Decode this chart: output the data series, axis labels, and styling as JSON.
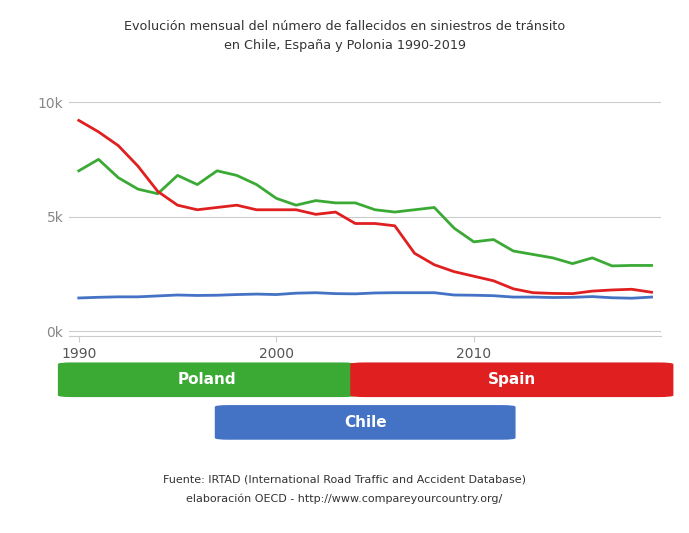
{
  "title_line1": "Evolución mensual del número de fallecidos en siniestros de tránsito",
  "title_line2": "en Chile, España y Polonia 1990-2019",
  "footer_line1": "Fuente: IRTAD (International Road Traffic and Accident Database)",
  "footer_line2": "elaboración OECD - http://www.compareyourcountry.org/",
  "background_color": "#ffffff",
  "plot_bg_color": "#ffffff",
  "grid_color": "#cccccc",
  "ytick_labels": [
    "0k",
    "5k",
    "10k"
  ],
  "ytick_values": [
    0,
    5000,
    10000
  ],
  "ylim": [
    -200,
    10500
  ],
  "xlim": [
    1989.5,
    2019.5
  ],
  "xtick_values": [
    1990,
    2000,
    2010
  ],
  "spain_color": "#e02020",
  "poland_color": "#3aaa35",
  "chile_color": "#4472c4",
  "years": [
    1990,
    1991,
    1992,
    1993,
    1994,
    1995,
    1996,
    1997,
    1998,
    1999,
    2000,
    2001,
    2002,
    2003,
    2004,
    2005,
    2006,
    2007,
    2008,
    2009,
    2010,
    2011,
    2012,
    2013,
    2014,
    2015,
    2016,
    2017,
    2018,
    2019
  ],
  "spain": [
    9200,
    8700,
    8100,
    7200,
    6100,
    5500,
    5300,
    5400,
    5500,
    5300,
    5300,
    5300,
    5100,
    5200,
    4700,
    4700,
    4600,
    3400,
    2900,
    2600,
    2400,
    2200,
    1850,
    1680,
    1650,
    1640,
    1750,
    1800,
    1830,
    1700
  ],
  "poland": [
    7000,
    7500,
    6700,
    6200,
    6000,
    6800,
    6400,
    7000,
    6800,
    6400,
    5800,
    5500,
    5700,
    5600,
    5600,
    5300,
    5200,
    5300,
    5400,
    4500,
    3900,
    4000,
    3500,
    3350,
    3200,
    2950,
    3200,
    2850,
    2870,
    2870
  ],
  "chile": [
    1450,
    1480,
    1500,
    1500,
    1540,
    1580,
    1560,
    1570,
    1600,
    1620,
    1600,
    1660,
    1680,
    1640,
    1630,
    1670,
    1680,
    1680,
    1680,
    1580,
    1570,
    1550,
    1490,
    1490,
    1470,
    1480,
    1510,
    1460,
    1440,
    1490
  ]
}
